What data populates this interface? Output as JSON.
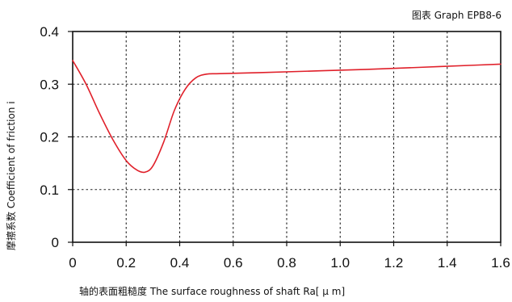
{
  "chart_data": {
    "type": "line",
    "graph_id": "图表 Graph EPB8-6",
    "xlabel": "轴的表面粗糙度 The surface roughness of shaft  Ra[ μ m]",
    "ylabel": "摩擦系数 Coefficient of friction i",
    "xlim": [
      0,
      1.6
    ],
    "ylim": [
      0,
      0.4
    ],
    "x_ticks": [
      "0",
      "0.2",
      "0.4",
      "0.6",
      "0.8",
      "1.0",
      "1.2",
      "1.4",
      "1.6"
    ],
    "y_ticks": [
      "0",
      "0.1",
      "0.2",
      "0.3",
      "0.4"
    ],
    "grid": true,
    "line_color": "#e0202a",
    "series": [
      {
        "x": [
          0,
          0.05,
          0.1,
          0.15,
          0.2,
          0.24,
          0.27,
          0.3,
          0.34,
          0.38,
          0.42,
          0.46,
          0.5,
          0.55,
          0.7,
          0.9,
          1.1,
          1.3,
          1.5,
          1.6
        ],
        "y": [
          0.345,
          0.3,
          0.245,
          0.195,
          0.155,
          0.137,
          0.133,
          0.145,
          0.19,
          0.25,
          0.29,
          0.312,
          0.319,
          0.32,
          0.322,
          0.325,
          0.328,
          0.332,
          0.336,
          0.338
        ]
      }
    ]
  }
}
